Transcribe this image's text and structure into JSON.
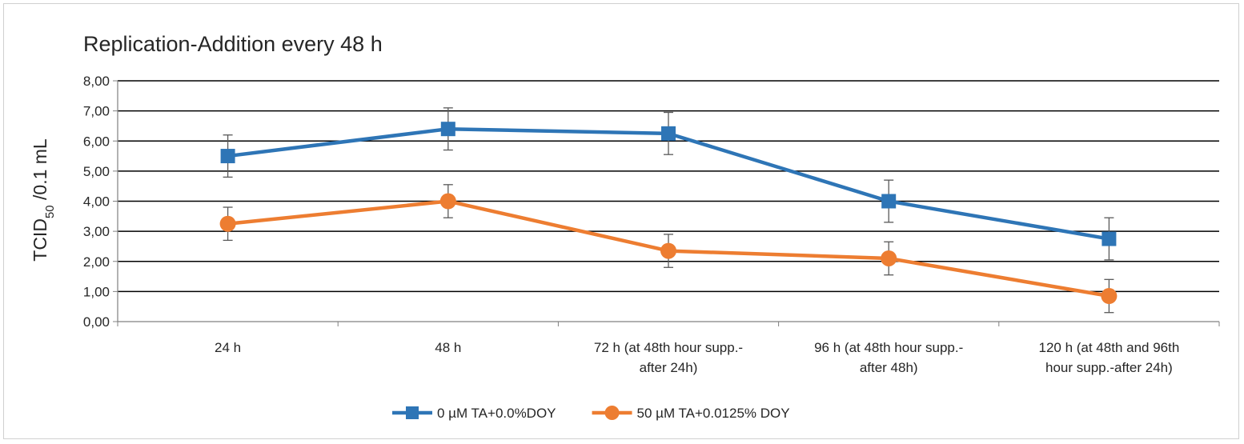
{
  "chart_data": {
    "type": "line",
    "title": "Replication-Addition every 48 h",
    "ylabel_main": "TCID",
    "ylabel_sub": "50",
    "ylabel_rest": " /0.1 mL",
    "ylim": [
      0,
      8
    ],
    "yticks": [
      "0,00",
      "1,00",
      "2,00",
      "3,00",
      "4,00",
      "5,00",
      "6,00",
      "7,00",
      "8,00"
    ],
    "categories": [
      [
        "24 h"
      ],
      [
        "48 h"
      ],
      [
        "72 h (at 48th hour supp.-",
        "after 24h)"
      ],
      [
        "96 h (at 48th hour supp.-",
        "after 48h)"
      ],
      [
        "120 h (at 48th and 96th",
        "hour supp.-after 24h)"
      ]
    ],
    "grid": true,
    "legend_position": "bottom",
    "series": [
      {
        "name": "0 µM TA+0.0%DOY",
        "color": "#2e75b6",
        "marker": "square",
        "values": [
          5.5,
          6.4,
          6.25,
          4.0,
          2.75
        ],
        "error": [
          0.7,
          0.7,
          0.7,
          0.7,
          0.7
        ]
      },
      {
        "name": "50 µM TA+0.0125% DOY",
        "color": "#ed7d31",
        "marker": "circle",
        "values": [
          3.25,
          4.0,
          2.35,
          2.1,
          0.85
        ],
        "error": [
          0.55,
          0.55,
          0.55,
          0.55,
          0.55
        ]
      }
    ]
  }
}
